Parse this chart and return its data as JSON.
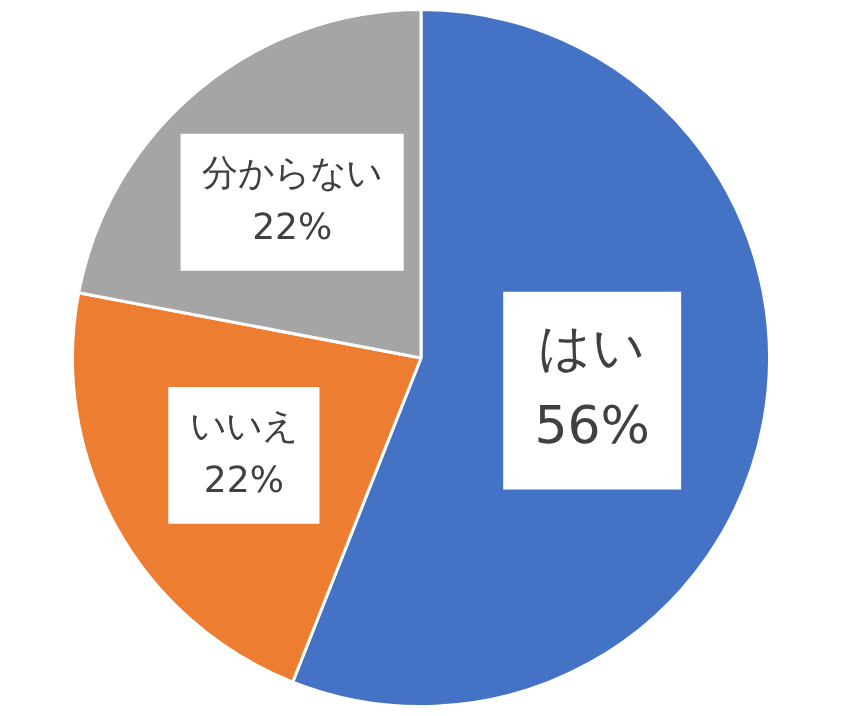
{
  "chart_data": {
    "type": "pie",
    "categories": [
      "はい",
      "いいえ",
      "分からない"
    ],
    "values": [
      56,
      22,
      22
    ],
    "colors": [
      "#4472c4",
      "#ed7d31",
      "#a5a5a5"
    ],
    "value_labels": [
      "56%",
      "22%",
      "22%"
    ],
    "legend": false
  }
}
